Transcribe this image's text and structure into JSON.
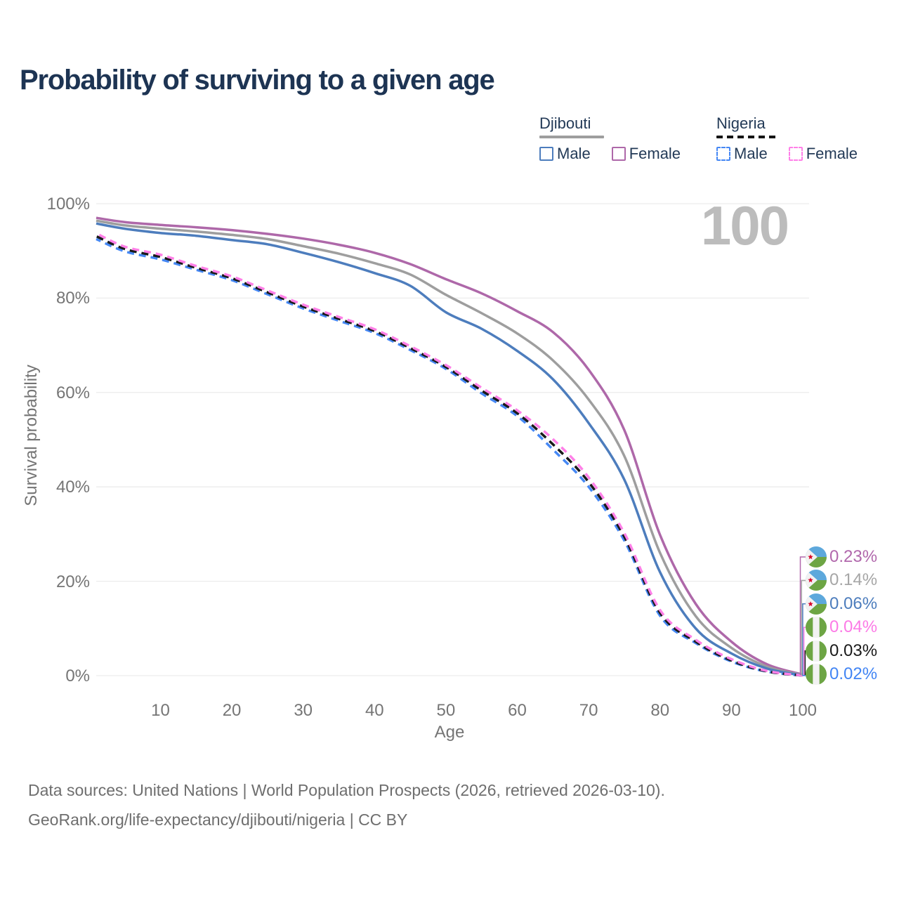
{
  "title": "Probability of surviving to a given age",
  "watermark": "100",
  "axes": {
    "x_label": "Age",
    "y_label": "Survival probability"
  },
  "legend": {
    "groups": [
      {
        "label": "Djibouti",
        "line_style": "solid",
        "underline_color": "#9e9e9e",
        "items": [
          {
            "label": "Male",
            "color": "#4d7dbd"
          },
          {
            "label": "Female",
            "color": "#ae68a9"
          }
        ]
      },
      {
        "label": "Nigeria",
        "line_style": "dashed",
        "underline_color": "#141414",
        "items": [
          {
            "label": "Male",
            "color": "#4688f4"
          },
          {
            "label": "Female",
            "color": "#ff80e8"
          }
        ]
      }
    ]
  },
  "chart_data": {
    "type": "line",
    "title": "Probability of surviving to a given age",
    "xlabel": "Age",
    "ylabel": "Survival probability",
    "xlim": [
      1,
      100
    ],
    "ylim": [
      0,
      100
    ],
    "grid": "horizontal",
    "legend_position": "top-right",
    "x_ticks": [
      10,
      20,
      30,
      40,
      50,
      60,
      70,
      80,
      90,
      100
    ],
    "y_ticks": [
      {
        "pct": 0,
        "label": "0%"
      },
      {
        "pct": 20,
        "label": "20%"
      },
      {
        "pct": 40,
        "label": "40%"
      },
      {
        "pct": 60,
        "label": "60%"
      },
      {
        "pct": 80,
        "label": "80%"
      },
      {
        "pct": 100,
        "label": "100%"
      }
    ],
    "x": [
      1,
      5,
      10,
      15,
      20,
      25,
      30,
      35,
      40,
      45,
      50,
      55,
      60,
      65,
      70,
      75,
      80,
      85,
      90,
      95,
      100
    ],
    "series": [
      {
        "name": "Djibouti Female",
        "country": "Djibouti",
        "sex": "female",
        "flag": "djibouti",
        "color": "#ae68a9",
        "dash": false,
        "end_label": "0.23%",
        "label_color": "#b168ac",
        "values": [
          97.0,
          96.1,
          95.5,
          95.0,
          94.4,
          93.6,
          92.6,
          91.3,
          89.6,
          87.2,
          84.0,
          81.0,
          77.2,
          72.8,
          64.8,
          52.0,
          29.8,
          15.2,
          7.2,
          2.4,
          0.23
        ]
      },
      {
        "name": "Djibouti Both sexes",
        "country": "Djibouti",
        "sex": "both",
        "flag": "djibouti",
        "color": "#9e9e9e",
        "dash": false,
        "end_label": "0.14%",
        "label_color": "#a6a6a6",
        "values": [
          96.4,
          95.4,
          94.7,
          94.1,
          93.4,
          92.5,
          91.0,
          89.4,
          87.4,
          85.0,
          80.7,
          76.8,
          72.5,
          66.8,
          58.5,
          46.5,
          26.0,
          12.6,
          5.9,
          1.9,
          0.14
        ]
      },
      {
        "name": "Djibouti Male",
        "country": "Djibouti",
        "sex": "male",
        "flag": "djibouti",
        "color": "#4d7dbd",
        "dash": false,
        "end_label": "0.06%",
        "label_color": "#4d7dbd",
        "values": [
          95.8,
          94.7,
          93.8,
          93.2,
          92.3,
          91.4,
          89.6,
          87.6,
          85.3,
          82.6,
          77.0,
          73.5,
          68.8,
          62.8,
          53.5,
          41.5,
          21.9,
          10.0,
          4.7,
          1.5,
          0.06
        ]
      },
      {
        "name": "Nigeria Female",
        "country": "Nigeria",
        "sex": "female",
        "flag": "nigeria",
        "color": "#ff80e8",
        "dash": true,
        "end_label": "0.04%",
        "label_color": "#fc7be6",
        "values": [
          93.7,
          90.9,
          89.2,
          86.8,
          84.6,
          81.6,
          78.6,
          76.0,
          73.4,
          69.8,
          65.8,
          61.0,
          56.2,
          50.1,
          42.0,
          30.2,
          13.9,
          7.6,
          3.5,
          1.0,
          0.04
        ]
      },
      {
        "name": "Nigeria Both sexes",
        "country": "Nigeria",
        "sex": "both",
        "flag": "nigeria",
        "color": "#1a1a1a",
        "dash": true,
        "end_label": "0.03%",
        "label_color": "#1a1a1a",
        "values": [
          93.1,
          90.4,
          88.7,
          86.4,
          84.2,
          81.2,
          78.2,
          75.6,
          73.0,
          69.4,
          65.4,
          60.4,
          55.6,
          49.0,
          41.0,
          29.4,
          13.3,
          7.2,
          3.2,
          0.9,
          0.03
        ]
      },
      {
        "name": "Nigeria Male",
        "country": "Nigeria",
        "sex": "male",
        "flag": "nigeria",
        "color": "#4688f4",
        "dash": true,
        "end_label": "0.02%",
        "label_color": "#4285f4",
        "values": [
          92.5,
          89.9,
          88.2,
          86.0,
          83.8,
          80.8,
          77.8,
          75.2,
          72.6,
          69.0,
          65.0,
          59.8,
          55.0,
          47.9,
          40.0,
          28.6,
          12.7,
          6.9,
          3.0,
          0.85,
          0.02
        ]
      }
    ]
  },
  "footer": {
    "line1": "Data sources: United Nations | World Population Prospects (2026, retrieved 2026-03-10).",
    "line2": "GeoRank.org/life-expectancy/djibouti/nigeria | CC BY"
  },
  "colors": {
    "title": "#1d3453",
    "legend_text": "#233a57",
    "axis_text": "#757575",
    "grid": "#ececec",
    "watermark": "#bcbcbc",
    "footer": "#6e6e6e",
    "background": "#ffffff",
    "flag_green": "#6da544",
    "flag_blue": "#5da8dc",
    "flag_star_red": "#d80027"
  }
}
